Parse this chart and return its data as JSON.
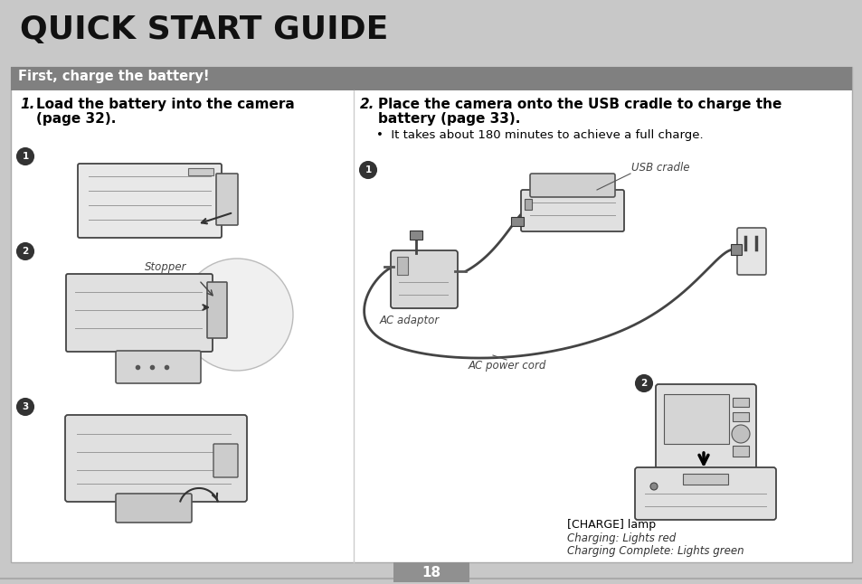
{
  "outer_bg": "#c8c8c8",
  "header_bg": "#c8c8c8",
  "header_text": "QUICK START GUIDE",
  "section_bg": "#808080",
  "section_text": "First, charge the battery!",
  "section_text_color": "#ffffff",
  "inner_bg": "#ffffff",
  "step1_num": "1.",
  "step1_line1": "Load the battery into the camera",
  "step1_line2": "(page 32).",
  "step2_num": "2.",
  "step2_line1": "Place the camera onto the USB cradle to charge the",
  "step2_line2": "battery (page 33).",
  "step2_bullet": "•  It takes about 180 minutes to achieve a full charge.",
  "label_stopper": "Stopper",
  "label_usb_cradle": "USB cradle",
  "label_ac_adaptor": "AC adaptor",
  "label_ac_power_cord": "AC power cord",
  "label_charge_lamp": "[CHARGE] lamp",
  "label_charging": "Charging: Lights red",
  "label_charging_complete": "Charging Complete: Lights green",
  "page_number": "18",
  "page_bg": "#909090",
  "page_text_color": "#ffffff"
}
